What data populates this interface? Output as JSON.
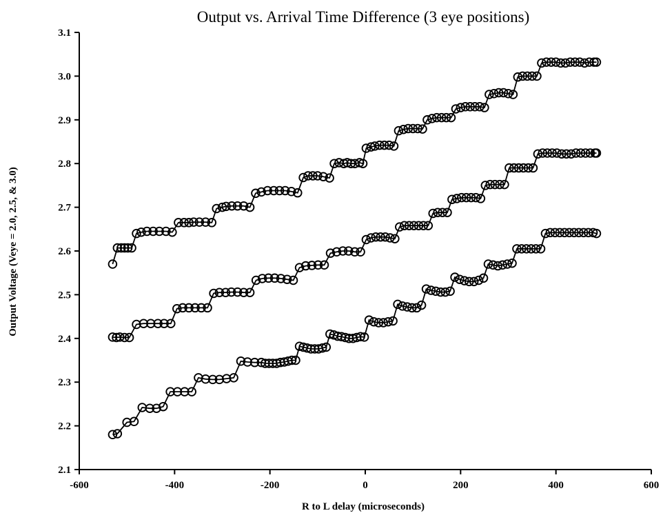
{
  "chart_data": {
    "type": "line",
    "title": "Output vs. Arrival Time Difference (3 eye positions)",
    "xlabel": "R to L delay (microseconds)",
    "ylabel": "Output Voltage (Veye = 2.0, 2.5, & 3.0)",
    "xlim": [
      -600,
      600
    ],
    "ylim": [
      2.1,
      3.1
    ],
    "xticks": [
      -600,
      -400,
      -200,
      0,
      200,
      400,
      600
    ],
    "yticks": [
      2.1,
      2.2,
      2.3,
      2.4,
      2.5,
      2.6,
      2.7,
      2.8,
      2.9,
      3.0,
      3.1
    ],
    "grid": false,
    "legend": "none",
    "marker": "open-circle",
    "series": [
      {
        "x": [
          -530,
          -520,
          -512,
          -505,
          -498,
          -490,
          -480,
          -470,
          -458,
          -445,
          -432,
          -418,
          -405,
          -392,
          -380,
          -370,
          -360,
          -348,
          -335,
          -322,
          -312,
          -300,
          -292,
          -280,
          -268,
          -255,
          -242,
          -230,
          -218,
          -205,
          -192,
          -180,
          -168,
          -155,
          -142,
          -130,
          -120,
          -110,
          -100,
          -88,
          -75,
          -65,
          -55,
          -45,
          -38,
          -30,
          -22,
          -12,
          -5,
          2,
          12,
          20,
          30,
          40,
          50,
          60,
          70,
          80,
          90,
          100,
          110,
          120,
          130,
          140,
          150,
          160,
          170,
          180,
          190,
          200,
          210,
          220,
          230,
          240,
          250,
          260,
          270,
          280,
          290,
          300,
          310,
          320,
          330,
          340,
          350,
          360,
          370,
          380,
          390,
          400,
          410,
          420,
          430,
          440,
          450,
          460,
          470,
          480,
          485
        ],
        "values": [
          2.57,
          2.607,
          2.607,
          2.607,
          2.607,
          2.607,
          2.64,
          2.643,
          2.645,
          2.645,
          2.645,
          2.645,
          2.643,
          2.665,
          2.665,
          2.665,
          2.666,
          2.666,
          2.666,
          2.665,
          2.697,
          2.7,
          2.702,
          2.703,
          2.703,
          2.703,
          2.7,
          2.732,
          2.735,
          2.738,
          2.738,
          2.738,
          2.738,
          2.736,
          2.733,
          2.768,
          2.772,
          2.772,
          2.772,
          2.77,
          2.767,
          2.8,
          2.802,
          2.8,
          2.802,
          2.8,
          2.8,
          2.802,
          2.8,
          2.835,
          2.838,
          2.84,
          2.842,
          2.842,
          2.842,
          2.84,
          2.875,
          2.878,
          2.88,
          2.88,
          2.88,
          2.879,
          2.9,
          2.903,
          2.905,
          2.905,
          2.905,
          2.905,
          2.925,
          2.928,
          2.93,
          2.93,
          2.93,
          2.93,
          2.928,
          2.958,
          2.96,
          2.962,
          2.962,
          2.96,
          2.958,
          2.998,
          3.0,
          3.0,
          3.0,
          3.0,
          3.03,
          3.032,
          3.032,
          3.032,
          3.03,
          3.03,
          3.032,
          3.032,
          3.032,
          3.03,
          3.032,
          3.032,
          3.032
        ]
      },
      {
        "x": [
          -530,
          -522,
          -515,
          -505,
          -495,
          -480,
          -465,
          -450,
          -435,
          -422,
          -408,
          -395,
          -383,
          -370,
          -357,
          -344,
          -331,
          -318,
          -306,
          -293,
          -281,
          -268,
          -255,
          -242,
          -229,
          -216,
          -203,
          -190,
          -177,
          -164,
          -151,
          -138,
          -125,
          -112,
          -99,
          -86,
          -73,
          -60,
          -47,
          -35,
          -22,
          -10,
          2,
          12,
          22,
          32,
          42,
          52,
          62,
          72,
          82,
          92,
          102,
          112,
          122,
          132,
          142,
          152,
          162,
          172,
          182,
          192,
          202,
          212,
          222,
          232,
          242,
          252,
          262,
          272,
          282,
          292,
          302,
          312,
          322,
          332,
          342,
          352,
          362,
          372,
          382,
          392,
          402,
          412,
          422,
          432,
          442,
          452,
          462,
          472,
          482,
          485
        ],
        "values": [
          2.403,
          2.402,
          2.403,
          2.402,
          2.402,
          2.432,
          2.434,
          2.434,
          2.434,
          2.434,
          2.434,
          2.468,
          2.47,
          2.47,
          2.47,
          2.47,
          2.47,
          2.503,
          2.505,
          2.505,
          2.506,
          2.506,
          2.505,
          2.505,
          2.533,
          2.537,
          2.538,
          2.538,
          2.537,
          2.535,
          2.533,
          2.562,
          2.566,
          2.567,
          2.568,
          2.568,
          2.595,
          2.598,
          2.6,
          2.6,
          2.598,
          2.598,
          2.626,
          2.63,
          2.632,
          2.632,
          2.632,
          2.63,
          2.628,
          2.655,
          2.658,
          2.658,
          2.658,
          2.658,
          2.658,
          2.658,
          2.686,
          2.688,
          2.688,
          2.688,
          2.718,
          2.72,
          2.722,
          2.722,
          2.722,
          2.722,
          2.72,
          2.75,
          2.752,
          2.752,
          2.752,
          2.752,
          2.79,
          2.79,
          2.79,
          2.79,
          2.79,
          2.79,
          2.822,
          2.824,
          2.824,
          2.824,
          2.824,
          2.822,
          2.822,
          2.822,
          2.824,
          2.824,
          2.824,
          2.824,
          2.824,
          2.824
        ]
      },
      {
        "x": [
          -530,
          -520,
          -500,
          -485,
          -468,
          -452,
          -438,
          -424,
          -409,
          -394,
          -379,
          -364,
          -350,
          -335,
          -320,
          -306,
          -291,
          -276,
          -261,
          -247,
          -232,
          -218,
          -210,
          -202,
          -194,
          -186,
          -178,
          -170,
          -162,
          -154,
          -146,
          -138,
          -130,
          -122,
          -114,
          -106,
          -98,
          -90,
          -82,
          -74,
          -66,
          -58,
          -50,
          -42,
          -34,
          -26,
          -18,
          -10,
          -2,
          8,
          18,
          28,
          38,
          48,
          58,
          68,
          78,
          88,
          98,
          108,
          118,
          128,
          138,
          148,
          158,
          168,
          178,
          188,
          198,
          208,
          218,
          228,
          238,
          248,
          258,
          268,
          278,
          288,
          298,
          308,
          318,
          328,
          338,
          348,
          358,
          368,
          378,
          388,
          398,
          408,
          418,
          428,
          438,
          448,
          458,
          468,
          478,
          485
        ],
        "values": [
          2.18,
          2.182,
          2.208,
          2.21,
          2.242,
          2.24,
          2.24,
          2.244,
          2.278,
          2.278,
          2.278,
          2.278,
          2.31,
          2.307,
          2.306,
          2.306,
          2.308,
          2.31,
          2.348,
          2.346,
          2.345,
          2.345,
          2.343,
          2.343,
          2.343,
          2.343,
          2.345,
          2.346,
          2.348,
          2.35,
          2.35,
          2.382,
          2.38,
          2.378,
          2.376,
          2.376,
          2.376,
          2.378,
          2.38,
          2.41,
          2.408,
          2.405,
          2.404,
          2.402,
          2.4,
          2.4,
          2.402,
          2.404,
          2.403,
          2.442,
          2.438,
          2.436,
          2.436,
          2.438,
          2.44,
          2.478,
          2.474,
          2.472,
          2.47,
          2.47,
          2.476,
          2.513,
          2.51,
          2.508,
          2.506,
          2.506,
          2.508,
          2.54,
          2.535,
          2.532,
          2.53,
          2.53,
          2.533,
          2.538,
          2.57,
          2.568,
          2.566,
          2.568,
          2.57,
          2.572,
          2.605,
          2.605,
          2.605,
          2.605,
          2.605,
          2.605,
          2.64,
          2.642,
          2.642,
          2.642,
          2.642,
          2.642,
          2.642,
          2.642,
          2.642,
          2.642,
          2.642,
          2.64
        ]
      }
    ]
  }
}
